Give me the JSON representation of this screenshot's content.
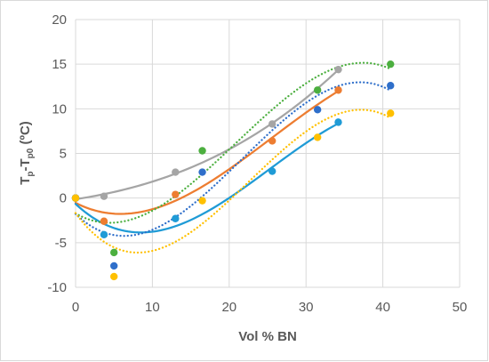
{
  "chart_data": {
    "type": "scatter",
    "title": "",
    "xlabel": "Vol % BN",
    "ylabel": "Tp-Tp0 (ºC)",
    "ylabel_parts": {
      "main": "T",
      "sub1": "p",
      "mid": "-T",
      "sub2": "p0",
      "tail": " (ºC)"
    },
    "xlim": [
      0,
      50
    ],
    "ylim": [
      -10,
      20
    ],
    "xticks": [
      0,
      10,
      20,
      30,
      40,
      50
    ],
    "yticks": [
      -10,
      -5,
      0,
      5,
      10,
      15,
      20
    ],
    "grid": true,
    "legend": "none",
    "series": [
      {
        "color": "#a5a5a5",
        "line": "solid",
        "x": [
          0,
          3.7,
          13,
          25.6,
          34.2
        ],
        "y": [
          0,
          0.2,
          2.9,
          8.3,
          14.4
        ]
      },
      {
        "color": "#ed7d31",
        "line": "solid",
        "x": [
          0,
          3.7,
          13,
          25.6,
          34.2
        ],
        "y": [
          0,
          -2.6,
          0.4,
          6.4,
          12.1
        ]
      },
      {
        "color": "#1f9bd6",
        "line": "solid",
        "x": [
          0,
          3.7,
          13,
          25.6,
          34.2
        ],
        "y": [
          0,
          -4.1,
          -2.3,
          3.0,
          8.5
        ]
      },
      {
        "color": "#4caf3f",
        "line": "dotted",
        "x": [
          0,
          5,
          16.5,
          31.5,
          41
        ],
        "y": [
          0,
          -6.1,
          5.3,
          12.1,
          15.0
        ]
      },
      {
        "color": "#2f6fca",
        "line": "dotted",
        "x": [
          0,
          5,
          16.5,
          31.5,
          41
        ],
        "y": [
          0,
          -7.6,
          2.9,
          9.9,
          12.6
        ]
      },
      {
        "color": "#ffc000",
        "line": "dotted",
        "x": [
          0,
          5,
          16.5,
          31.5,
          41
        ],
        "y": [
          0,
          -8.8,
          -0.3,
          6.8,
          9.5
        ]
      }
    ]
  }
}
